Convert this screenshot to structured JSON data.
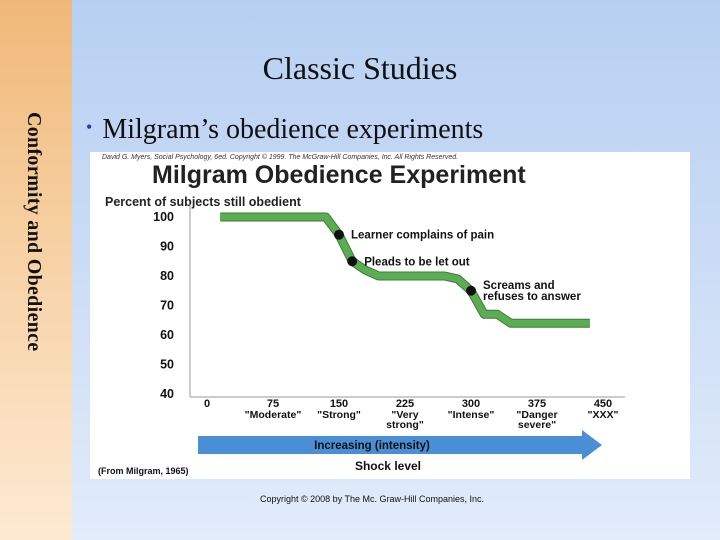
{
  "slide": {
    "side_title": "Conformity and Obedience",
    "title": "Classic Studies",
    "bullet": "Milgram’s obedience experiments",
    "copyright": "Copyright © 2008 by The Mc. Graw-Hill Companies, Inc."
  },
  "figure": {
    "credit": "David G. Myers, Social Psychology, 6ed. Copyright © 1999. The McGraw-Hill Companies, Inc. All Rights Reserved.",
    "source": "(From Milgram, 1965)",
    "arrow_label": "Increasing (intensity)",
    "colors": {
      "line": "#5aad52",
      "arrow": "#4a8fd6",
      "marker": "#111111"
    }
  },
  "chart_data": {
    "type": "line",
    "title": "Milgram Obedience Experiment",
    "ylabel": "Percent of subjects still obedient",
    "xlabel": "Shock level",
    "ylim": [
      40,
      100
    ],
    "xlim": [
      0,
      450
    ],
    "y_ticks": [
      100,
      90,
      80,
      70,
      60,
      50,
      40
    ],
    "x_ticks": [
      {
        "value": 0,
        "label": "0",
        "sub": []
      },
      {
        "value": 75,
        "label": "75",
        "sub": [
          "\"Moderate\""
        ]
      },
      {
        "value": 150,
        "label": "150",
        "sub": [
          "\"Strong\""
        ]
      },
      {
        "value": 225,
        "label": "225",
        "sub": [
          "\"Very",
          "strong\""
        ]
      },
      {
        "value": 300,
        "label": "300",
        "sub": [
          "\"Intense\""
        ]
      },
      {
        "value": 375,
        "label": "375",
        "sub": [
          "\"Danger",
          "severe\""
        ]
      },
      {
        "value": 450,
        "label": "450",
        "sub": [
          "\"XXX\""
        ]
      }
    ],
    "series": [
      {
        "x": [
          15,
          105,
          135,
          150,
          165,
          180,
          195,
          210,
          225,
          240,
          255,
          270,
          285,
          300,
          315,
          330,
          345,
          360,
          375,
          390,
          405,
          420,
          435
        ],
        "values": [
          100,
          100,
          100,
          94,
          85,
          82,
          80,
          80,
          80,
          80,
          80,
          80,
          79,
          75,
          67,
          67,
          64,
          64,
          64,
          64,
          64,
          64,
          64
        ]
      }
    ],
    "annotations": [
      {
        "x": 150,
        "y": 94,
        "lines": [
          "Learner complains of pain"
        ]
      },
      {
        "x": 165,
        "y": 85,
        "lines": [
          "Pleads to be let out"
        ]
      },
      {
        "x": 300,
        "y": 75,
        "lines": [
          "Screams and",
          "refuses to answer"
        ]
      }
    ],
    "grid": false,
    "legend": "none"
  }
}
